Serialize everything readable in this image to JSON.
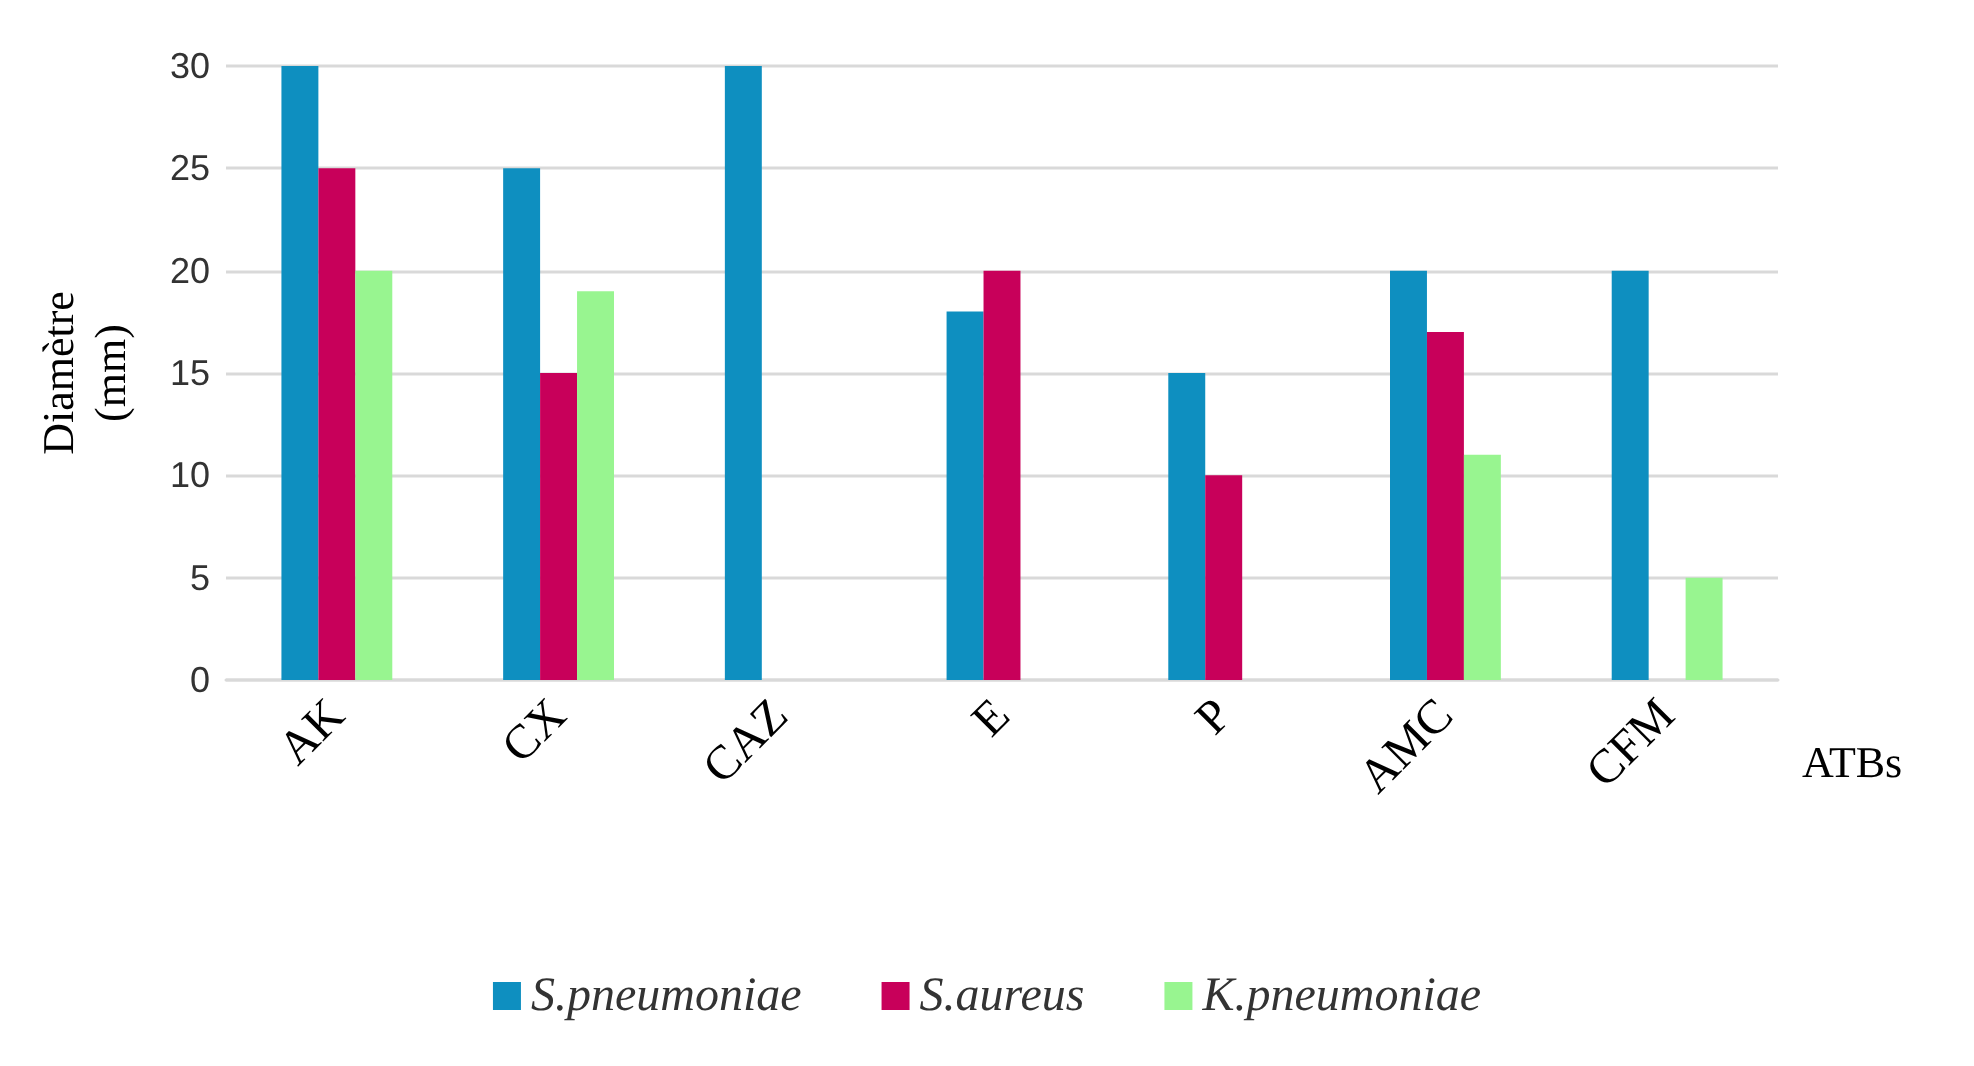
{
  "chart_data": {
    "type": "bar",
    "categories": [
      "AK",
      "CX",
      "CAZ",
      "E",
      "P",
      "AMC",
      "CFM"
    ],
    "xlabel": "ATBs",
    "ylabel": "Diamètre\n(mm)",
    "ylim": [
      0,
      30
    ],
    "yticks": [
      0,
      5,
      10,
      15,
      20,
      25,
      30
    ],
    "grid": "y",
    "legend": "bottom",
    "series": [
      {
        "name": "S.pneumoniae",
        "color": "#0e8fc0",
        "values": [
          30,
          25,
          30,
          18,
          15,
          20,
          20
        ]
      },
      {
        "name": "S.aureus",
        "color": "#c8005a",
        "values": [
          25,
          15,
          0,
          20,
          10,
          17,
          0
        ]
      },
      {
        "name": "K.pneumoniae",
        "color": "#98f590",
        "values": [
          20,
          19,
          null,
          0,
          0,
          11,
          5
        ]
      }
    ]
  }
}
